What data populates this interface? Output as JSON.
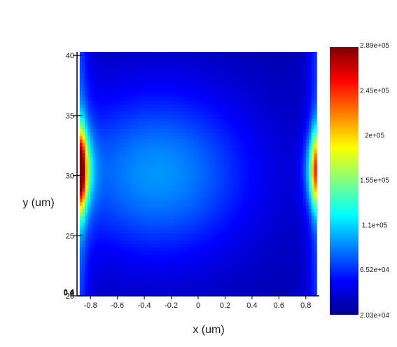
{
  "chart_data": {
    "type": "heatmap",
    "title": "",
    "xlabel": "x (um)",
    "ylabel": "y (um)",
    "xlim": [
      -0.9,
      0.9
    ],
    "ylim": [
      20,
      40.3
    ],
    "x_ticks": [
      "-0.8",
      "-0.6",
      "-0.4",
      "-0.2",
      "0",
      "0.2",
      "0.4",
      "0.6",
      "0.8"
    ],
    "x_tick_values": [
      -0.8,
      -0.6,
      -0.4,
      -0.2,
      0,
      0.2,
      0.4,
      0.6,
      0.8
    ],
    "y_ticks": [
      "20",
      "25",
      "30",
      "35",
      "40"
    ],
    "y_tick_values": [
      20,
      25,
      30,
      35,
      40
    ],
    "y_overlap_labels": [
      "0.4",
      "0.2",
      "0"
    ],
    "colorscale": "jet",
    "colorbar": {
      "min": 20300,
      "max": 289000,
      "tick_labels": [
        "2.89e+05",
        "2.45e+05",
        "2e+05",
        "1.55e+05",
        "1.1e+05",
        "6.52e+04",
        "2.03e+04"
      ],
      "tick_values": [
        289000,
        245000,
        200000,
        155000,
        110000,
        65200,
        20300
      ]
    },
    "field_description": {
      "center_value": 93000,
      "center_x": -0.3,
      "center_y": 30.2,
      "edge_peak_value": 280000,
      "edge_peak_y": 30.5,
      "base_value": 30000
    }
  }
}
